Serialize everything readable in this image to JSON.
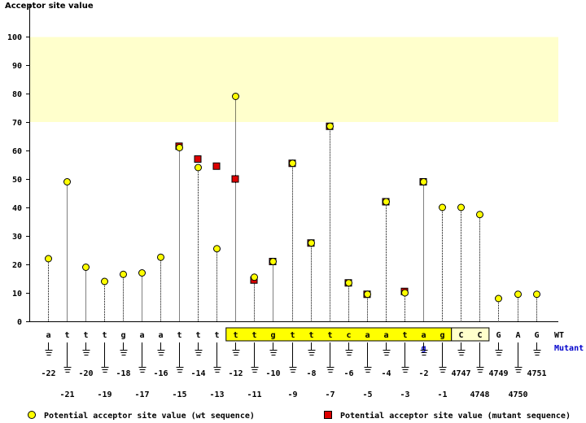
{
  "chart_data": {
    "type": "lollipop",
    "ylabel": "Acceptor site value",
    "ylim": [
      0,
      100
    ],
    "yticks": [
      0,
      10,
      20,
      30,
      40,
      50,
      60,
      70,
      80,
      90,
      100
    ],
    "highlight_band": [
      70,
      100
    ],
    "row_labels": {
      "wt": "WT",
      "mutant": "Mutant"
    },
    "positions": [
      {
        "wt": "a",
        "pos": "-22",
        "v": 22
      },
      {
        "wt": "t",
        "pos": "-21",
        "v": 49
      },
      {
        "wt": "t",
        "pos": "-20",
        "v": 19
      },
      {
        "wt": "t",
        "pos": "-19",
        "v": 14
      },
      {
        "wt": "g",
        "pos": "-18",
        "v": 16.5
      },
      {
        "wt": "a",
        "pos": "-17",
        "v": 17
      },
      {
        "wt": "a",
        "pos": "-16",
        "v": 22.5
      },
      {
        "wt": "t",
        "pos": "-15",
        "v": 61,
        "mut": 61.5
      },
      {
        "wt": "t",
        "pos": "-14",
        "v": 54,
        "mut": 57
      },
      {
        "wt": "t",
        "pos": "-13",
        "v": 25.5,
        "mut": 54.5
      },
      {
        "wt": "t",
        "pos": "-12",
        "v": 79,
        "mut": 50,
        "box": "exon"
      },
      {
        "wt": "t",
        "pos": "-11",
        "v": 15.5,
        "mut": 14.5,
        "box": "exon"
      },
      {
        "wt": "g",
        "pos": "-10",
        "v": 21,
        "mut": 21,
        "box": "exon"
      },
      {
        "wt": "t",
        "pos": "-9",
        "v": 55.5,
        "mut": 55.5,
        "box": "exon"
      },
      {
        "wt": "t",
        "pos": "-8",
        "v": 27.5,
        "mut": 27.5,
        "box": "exon"
      },
      {
        "wt": "t",
        "pos": "-7",
        "v": 68.5,
        "mut": 68.5,
        "box": "exon"
      },
      {
        "wt": "c",
        "pos": "-6",
        "v": 13.5,
        "mut": 13.5,
        "box": "exon"
      },
      {
        "wt": "a",
        "pos": "-5",
        "v": 9.5,
        "mut": 9.5,
        "box": "exon"
      },
      {
        "wt": "a",
        "pos": "-4",
        "v": 42,
        "mut": 42,
        "box": "exon"
      },
      {
        "wt": "t",
        "pos": "-3",
        "v": 10,
        "mut": 10.5,
        "box": "exon"
      },
      {
        "wt": "a",
        "pos": "-2",
        "v": 49,
        "mut": 49,
        "box": "exon",
        "mutant_base": "g"
      },
      {
        "wt": "g",
        "pos": "-1",
        "v": 40,
        "box": "exon"
      },
      {
        "wt": "C",
        "pos": "4747",
        "v": 40,
        "box": "cds"
      },
      {
        "wt": "C",
        "pos": "4748",
        "v": 37.5,
        "box": "cds"
      },
      {
        "wt": "G",
        "pos": "4749",
        "v": 8
      },
      {
        "wt": "A",
        "pos": "4750",
        "v": 9.5
      },
      {
        "wt": "G",
        "pos": "4751",
        "v": 9.5
      }
    ],
    "legend": [
      {
        "label": "Potential acceptor site value (wt sequence)",
        "marker": "circle",
        "color": "#ffff00"
      },
      {
        "label": "Potential acceptor site value (mutant sequence)",
        "marker": "square",
        "color": "#dd0000"
      }
    ]
  }
}
